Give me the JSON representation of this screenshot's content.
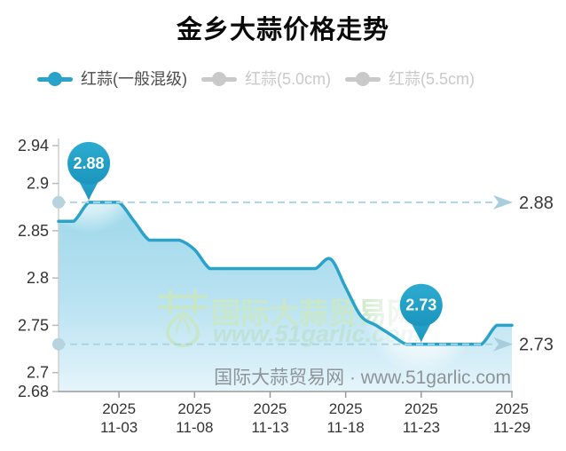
{
  "title": "金乡大蒜价格走势",
  "legend": [
    {
      "label": "红蒜(一般混级)",
      "active": true
    },
    {
      "label": "红蒜(5.0cm)",
      "active": false
    },
    {
      "label": "红蒜(5.5cm)",
      "active": false
    }
  ],
  "colors": {
    "series": "#29a3c9",
    "balloon_top": "#2cabd0",
    "balloon_bottom": "#1b95bd",
    "area_top": "#7ccbe2",
    "area_mid": "#aadcee",
    "area_bottom": "#e6f5fb",
    "inactive": "#c9c9c9",
    "legend_text": "#4d4d4d",
    "dashed": "#a9d6e5",
    "arrow": "#a6cedd",
    "dot": "#b7d3dd",
    "axis_text": "#333333",
    "annotation_text": "#3a3a3a",
    "watermark_green": "#cbe8c6",
    "watermark_teal": "#bce2d2",
    "watermark_gray": "#8d9499"
  },
  "watermark_center": {
    "line1": "国际大蒜贸易网",
    "line2": "www.51garlic.com"
  },
  "watermark_bottom": "国际大蒜贸易网 · www.51garlic.com",
  "chart_data": {
    "type": "area",
    "title": "金乡大蒜价格走势",
    "series_name": "红蒜(一般混级)",
    "x": [
      "2025-10-30",
      "2025-10-31",
      "2025-11-01",
      "2025-11-02",
      "2025-11-03",
      "2025-11-04",
      "2025-11-05",
      "2025-11-06",
      "2025-11-07",
      "2025-11-08",
      "2025-11-09",
      "2025-11-10",
      "2025-11-11",
      "2025-11-12",
      "2025-11-13",
      "2025-11-14",
      "2025-11-15",
      "2025-11-16",
      "2025-11-17",
      "2025-11-18",
      "2025-11-19",
      "2025-11-20",
      "2025-11-21",
      "2025-11-22",
      "2025-11-23",
      "2025-11-24",
      "2025-11-25",
      "2025-11-26",
      "2025-11-27",
      "2025-11-28",
      "2025-11-29"
    ],
    "values": [
      2.86,
      2.86,
      2.88,
      2.88,
      2.88,
      2.86,
      2.84,
      2.84,
      2.84,
      2.83,
      2.81,
      2.81,
      2.81,
      2.81,
      2.81,
      2.81,
      2.81,
      2.81,
      2.82,
      2.79,
      2.76,
      2.75,
      2.74,
      2.73,
      2.73,
      2.73,
      2.73,
      2.73,
      2.73,
      2.75,
      2.75
    ],
    "ylim": [
      2.68,
      2.94
    ],
    "yticks": [
      2.94,
      2.9,
      2.85,
      2.8,
      2.75,
      2.7,
      2.68
    ],
    "ytick_labels": [
      "2.94",
      "2.9",
      "2.85",
      "2.8",
      "2.75",
      "2.7",
      "2.68"
    ],
    "xticks": [
      {
        "index": 4,
        "line1": "2025",
        "line2": "11-03"
      },
      {
        "index": 9,
        "line1": "2025",
        "line2": "11-08"
      },
      {
        "index": 14,
        "line1": "2025",
        "line2": "11-13"
      },
      {
        "index": 19,
        "line1": "2025",
        "line2": "11-18"
      },
      {
        "index": 24,
        "line1": "2025",
        "line2": "11-23"
      },
      {
        "index": 30,
        "line1": "2025",
        "line2": "11-29"
      }
    ],
    "annotations": [
      {
        "label": "2.88",
        "value": 2.88,
        "index": 2
      },
      {
        "label": "2.73",
        "value": 2.73,
        "index": 24
      }
    ],
    "grid": false,
    "legend_position": "top",
    "smooth": true
  }
}
